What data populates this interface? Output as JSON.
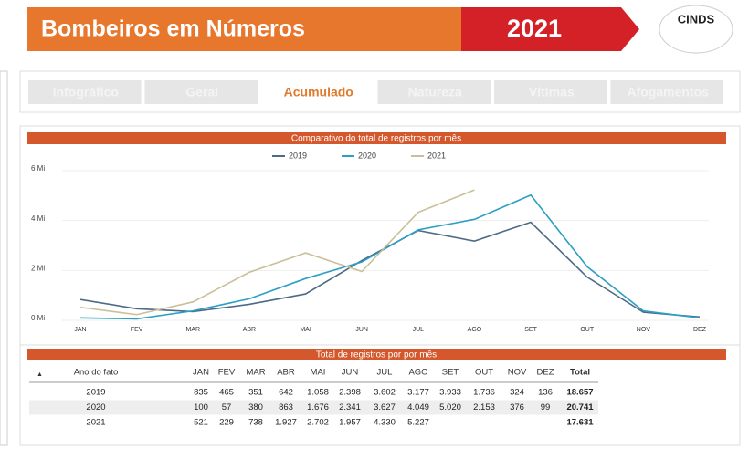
{
  "header": {
    "title": "Bombeiros em Números",
    "year": "2021",
    "logo": "CINDS"
  },
  "tabs": [
    "Infográfico",
    "Geral",
    "Acumulado",
    "Natureza",
    "Vítimas",
    "Afogamentos"
  ],
  "active_tab": 2,
  "chart_data": {
    "type": "line",
    "title": "Comparativo do total de registros por mês",
    "categories": [
      "JAN",
      "FEV",
      "MAR",
      "ABR",
      "MAI",
      "JUN",
      "JUL",
      "AGO",
      "SET",
      "OUT",
      "NOV",
      "DEZ"
    ],
    "series": [
      {
        "name": "2019",
        "color": "#4d6a86",
        "values": [
          0.835,
          0.465,
          0.351,
          0.642,
          1.058,
          2.398,
          3.602,
          3.177,
          3.933,
          1.736,
          0.324,
          0.136
        ]
      },
      {
        "name": "2020",
        "color": "#2b9fc4",
        "values": [
          0.1,
          0.057,
          0.38,
          0.863,
          1.676,
          2.341,
          3.627,
          4.049,
          5.02,
          2.153,
          0.376,
          0.099
        ]
      },
      {
        "name": "2021",
        "color": "#c9bf98",
        "values": [
          0.521,
          0.229,
          0.738,
          1.927,
          2.702,
          1.957,
          4.33,
          5.227,
          null,
          null,
          null,
          null
        ]
      }
    ],
    "ylim": [
      0,
      6
    ],
    "yticks": [
      {
        "value": 0,
        "label": "0 Mi"
      },
      {
        "value": 2,
        "label": "2 Mi"
      },
      {
        "value": 4,
        "label": "4 Mi"
      },
      {
        "value": 6,
        "label": "6 Mi"
      }
    ],
    "legend": "top"
  },
  "table": {
    "title": "Total de registros por por mês",
    "columns": [
      "Ano do fato",
      "JAN",
      "FEV",
      "MAR",
      "ABR",
      "MAI",
      "JUN",
      "JUL",
      "AGO",
      "SET",
      "OUT",
      "NOV",
      "DEZ",
      "Total"
    ],
    "rows": [
      [
        "2019",
        "835",
        "465",
        "351",
        "642",
        "1.058",
        "2.398",
        "3.602",
        "3.177",
        "3.933",
        "1.736",
        "324",
        "136",
        "18.657"
      ],
      [
        "2020",
        "100",
        "57",
        "380",
        "863",
        "1.676",
        "2.341",
        "3.627",
        "4.049",
        "5.020",
        "2.153",
        "376",
        "99",
        "20.741"
      ],
      [
        "2021",
        "521",
        "229",
        "738",
        "1.927",
        "2.702",
        "1.957",
        "4.330",
        "5.227",
        "",
        "",
        "",
        "",
        "17.631"
      ]
    ]
  }
}
